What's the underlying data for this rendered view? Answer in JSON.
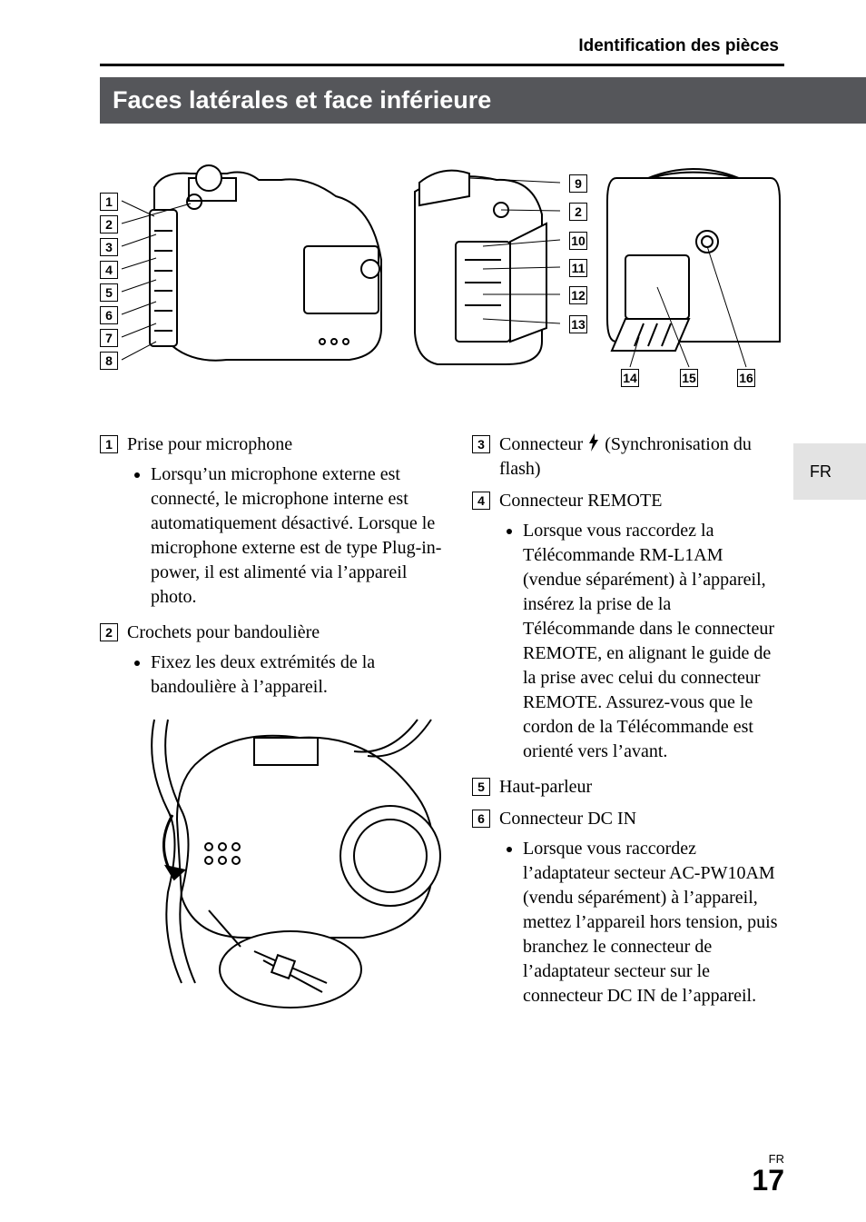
{
  "header": {
    "section_title": "Identification des pièces"
  },
  "title_bar": "Faces latérales et face inférieure",
  "side_tab": "FR",
  "page_footer": {
    "lang": "FR",
    "number": "17"
  },
  "figures": {
    "fig1_callouts": [
      "1",
      "2",
      "3",
      "4",
      "5",
      "6",
      "7",
      "8"
    ],
    "fig2_callouts": [
      "9",
      "2",
      "10",
      "11",
      "12",
      "13"
    ],
    "fig3_callouts": [
      "14",
      "15",
      "16"
    ]
  },
  "colors": {
    "title_bar_bg": "#55565a",
    "title_bar_text": "#ffffff",
    "side_tab_bg": "#e3e3e3",
    "text": "#000000",
    "page_bg": "#ffffff"
  },
  "entries_left": [
    {
      "ref": "1",
      "title": "Prise pour microphone",
      "bullets": [
        "Lorsqu’un microphone externe est connecté, le microphone interne est automatiquement désactivé. Lorsque le microphone externe est de type Plug-in-power, il est alimenté via l’appareil photo."
      ]
    },
    {
      "ref": "2",
      "title": "Crochets pour bandoulière",
      "bullets": [
        "Fixez les deux extrémités de la bandoulière à l’appareil."
      ]
    }
  ],
  "entries_right": [
    {
      "ref": "3",
      "title_pre": "Connecteur ",
      "title_post": " (Synchronisation du flash)",
      "has_flash_icon": true,
      "bullets": []
    },
    {
      "ref": "4",
      "title": "Connecteur REMOTE",
      "bullets": [
        "Lorsque vous raccordez la Télécommande RM-L1AM (vendue séparément) à l’appareil, insérez la prise de la Télécommande dans le connecteur REMOTE, en alignant le guide de la prise avec celui du connecteur REMOTE. Assurez-vous que le cordon de la Télécommande est orienté vers l’avant."
      ]
    },
    {
      "ref": "5",
      "title": "Haut-parleur",
      "bullets": []
    },
    {
      "ref": "6",
      "title": "Connecteur DC IN",
      "bullets": [
        "Lorsque vous raccordez l’adaptateur secteur AC-PW10AM (vendu séparément) à l’appareil, mettez l’appareil hors tension, puis branchez le connecteur de l’adaptateur secteur sur le connecteur DC IN de l’appareil."
      ]
    }
  ]
}
